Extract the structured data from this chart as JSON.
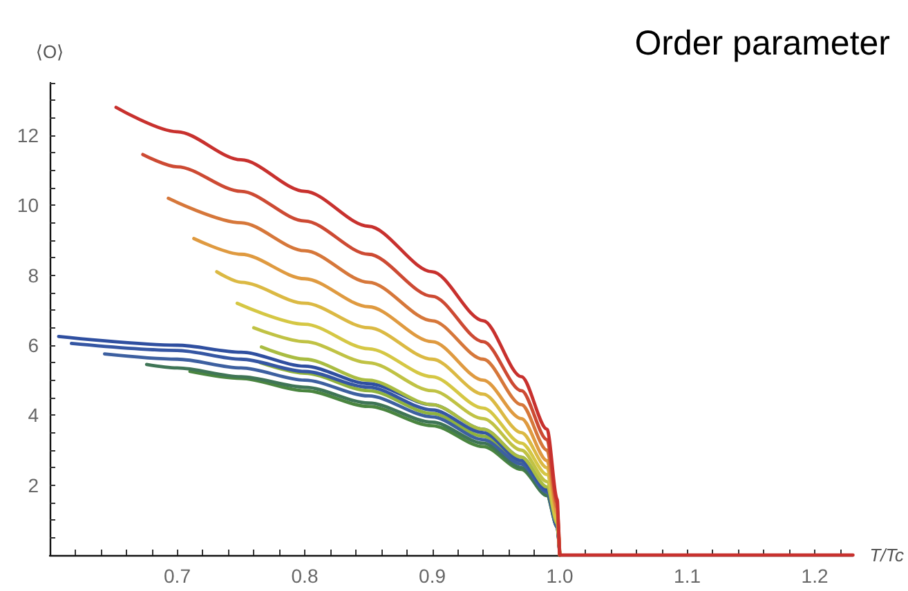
{
  "chart_data": {
    "type": "line",
    "title": "Order parameter",
    "xlabel": "T/Tc",
    "ylabel": "⟨O⟩",
    "xlim": [
      0.6,
      1.23
    ],
    "ylim": [
      0,
      13.5
    ],
    "xticks": [
      {
        "value": 0.62,
        "label": null
      },
      {
        "value": 0.64,
        "label": null
      },
      {
        "value": 0.66,
        "label": null
      },
      {
        "value": 0.68,
        "label": null
      },
      0.7,
      {
        "value": 0.72,
        "label": null
      },
      {
        "value": 0.74,
        "label": null
      },
      {
        "value": 0.76,
        "label": null
      },
      {
        "value": 0.78,
        "label": null
      },
      0.8,
      {
        "value": 0.82,
        "label": null
      },
      {
        "value": 0.84,
        "label": null
      },
      {
        "value": 0.86,
        "label": null
      },
      {
        "value": 0.88,
        "label": null
      },
      0.9,
      {
        "value": 0.92,
        "label": null
      },
      {
        "value": 0.94,
        "label": null
      },
      {
        "value": 0.96,
        "label": null
      },
      {
        "value": 0.98,
        "label": null
      },
      {
        "value": 1,
        "label": "1.0"
      },
      {
        "value": 1.02,
        "label": null
      },
      {
        "value": 1.04,
        "label": null
      },
      {
        "value": 1.06,
        "label": null
      },
      {
        "value": 1.08,
        "label": null
      },
      1.1,
      {
        "value": 1.12,
        "label": null
      },
      {
        "value": 1.14,
        "label": null
      },
      {
        "value": 1.16,
        "label": null
      },
      {
        "value": 1.18,
        "label": null
      },
      1.2,
      {
        "value": 1.22,
        "label": null
      }
    ],
    "yticks": [
      {
        "value": 0.5,
        "label": null
      },
      {
        "value": 1,
        "label": null
      },
      {
        "value": 1.5,
        "label": null
      },
      2,
      {
        "value": 2.5,
        "label": null
      },
      {
        "value": 3,
        "label": null
      },
      {
        "value": 3.5,
        "label": null
      },
      4,
      {
        "value": 4.5,
        "label": null
      },
      {
        "value": 5,
        "label": null
      },
      {
        "value": 5.5,
        "label": null
      },
      6,
      {
        "value": 6.5,
        "label": null
      },
      {
        "value": 7,
        "label": null
      },
      {
        "value": 7.5,
        "label": null
      },
      8,
      {
        "value": 8.5,
        "label": null
      },
      {
        "value": 9,
        "label": null
      },
      {
        "value": 9.5,
        "label": null
      },
      10,
      {
        "value": 10.5,
        "label": null
      },
      {
        "value": 11,
        "label": null
      },
      {
        "value": 11.5,
        "label": null
      },
      12,
      {
        "value": 12.5,
        "label": null
      },
      {
        "value": 13,
        "label": null
      },
      {
        "value": 13.5,
        "label": null
      }
    ],
    "marker": "none",
    "line_style": "solid",
    "series": [
      {
        "color": "#c8312e",
        "x": [
          0.652,
          0.7,
          0.75,
          0.8,
          0.85,
          0.9,
          0.94,
          0.97,
          0.99,
          0.998,
          1.0,
          1.23
        ],
        "values": [
          12.8,
          12.1,
          11.3,
          10.4,
          9.4,
          8.1,
          6.7,
          5.1,
          3.6,
          1.6,
          0,
          0
        ]
      },
      {
        "color": "#cd4a33",
        "x": [
          0.673,
          0.7,
          0.75,
          0.8,
          0.85,
          0.9,
          0.94,
          0.97,
          0.99,
          0.998,
          1.0
        ],
        "values": [
          11.45,
          11.1,
          10.4,
          9.55,
          8.6,
          7.4,
          6.1,
          4.7,
          3.3,
          1.5,
          0
        ]
      },
      {
        "color": "#d6773a",
        "x": [
          0.693,
          0.75,
          0.8,
          0.85,
          0.9,
          0.94,
          0.97,
          0.99,
          0.998,
          1.0
        ],
        "values": [
          10.2,
          9.5,
          8.7,
          7.8,
          6.7,
          5.6,
          4.3,
          3.0,
          1.35,
          0
        ]
      },
      {
        "color": "#df9a40",
        "x": [
          0.713,
          0.75,
          0.8,
          0.85,
          0.9,
          0.94,
          0.97,
          0.99,
          0.998,
          1.0
        ],
        "values": [
          9.05,
          8.6,
          7.9,
          7.1,
          6.1,
          5.0,
          3.9,
          2.7,
          1.2,
          0
        ]
      },
      {
        "color": "#dbb943",
        "x": [
          0.731,
          0.75,
          0.8,
          0.85,
          0.9,
          0.94,
          0.97,
          0.99,
          0.998,
          1.0
        ],
        "values": [
          8.1,
          7.8,
          7.2,
          6.5,
          5.6,
          4.6,
          3.5,
          2.5,
          1.1,
          0
        ]
      },
      {
        "color": "#d5c744",
        "x": [
          0.747,
          0.8,
          0.85,
          0.9,
          0.94,
          0.97,
          0.99,
          0.998,
          1.0
        ],
        "values": [
          7.2,
          6.6,
          5.9,
          5.1,
          4.2,
          3.2,
          2.3,
          1.0,
          0
        ]
      },
      {
        "color": "#c0c244",
        "x": [
          0.76,
          0.8,
          0.85,
          0.9,
          0.94,
          0.97,
          0.99,
          0.998,
          1.0
        ],
        "values": [
          6.5,
          6.1,
          5.5,
          4.7,
          3.9,
          3.0,
          2.1,
          0.95,
          0
        ]
      },
      {
        "color": "#a9bc42",
        "x": [
          0.766,
          0.8,
          0.85,
          0.9,
          0.94,
          0.97,
          0.99,
          0.998,
          1.0
        ],
        "values": [
          5.95,
          5.6,
          5.0,
          4.3,
          3.6,
          2.8,
          1.95,
          0.9,
          0
        ]
      },
      {
        "color": "#2f4fa0",
        "x": [
          0.607,
          0.7,
          0.75,
          0.8,
          0.85,
          0.9,
          0.94,
          0.97,
          0.99,
          0.998,
          1.0
        ],
        "values": [
          6.25,
          6.0,
          5.8,
          5.4,
          4.9,
          4.3,
          3.6,
          2.8,
          1.9,
          0.9,
          0
        ]
      },
      {
        "color": "#3556a3",
        "x": [
          0.617,
          0.7,
          0.75,
          0.8,
          0.85,
          0.9,
          0.94,
          0.97,
          0.99,
          0.998,
          1.0
        ],
        "values": [
          6.05,
          5.85,
          5.6,
          5.25,
          4.8,
          4.15,
          3.5,
          2.7,
          1.85,
          0.85,
          0
        ]
      },
      {
        "color": "#3d60a0",
        "x": [
          0.643,
          0.7,
          0.75,
          0.8,
          0.85,
          0.9,
          0.94,
          0.97,
          0.99,
          0.998,
          1.0
        ],
        "values": [
          5.75,
          5.6,
          5.35,
          5.0,
          4.55,
          3.95,
          3.3,
          2.6,
          1.8,
          0.8,
          0
        ]
      },
      {
        "color": "#3f7556",
        "x": [
          0.676,
          0.7,
          0.75,
          0.8,
          0.85,
          0.9,
          0.94,
          0.97,
          0.99,
          0.998,
          1.0
        ],
        "values": [
          5.45,
          5.35,
          5.1,
          4.8,
          4.35,
          3.8,
          3.2,
          2.5,
          1.7,
          0.8,
          0
        ]
      },
      {
        "color": "#4a8540",
        "x": [
          0.71,
          0.75,
          0.8,
          0.85,
          0.9,
          0.94,
          0.97,
          0.99,
          0.998,
          1.0
        ],
        "values": [
          5.25,
          5.05,
          4.7,
          4.25,
          3.7,
          3.1,
          2.45,
          1.7,
          0.8,
          0
        ]
      },
      {
        "color": "#8fb23e",
        "x": [
          0.765,
          0.8,
          0.85,
          0.9,
          0.94,
          0.97,
          0.99,
          0.998,
          1.0
        ],
        "values": [
          5.5,
          5.2,
          4.7,
          4.05,
          3.4,
          2.65,
          1.85,
          0.85,
          0
        ]
      }
    ]
  }
}
